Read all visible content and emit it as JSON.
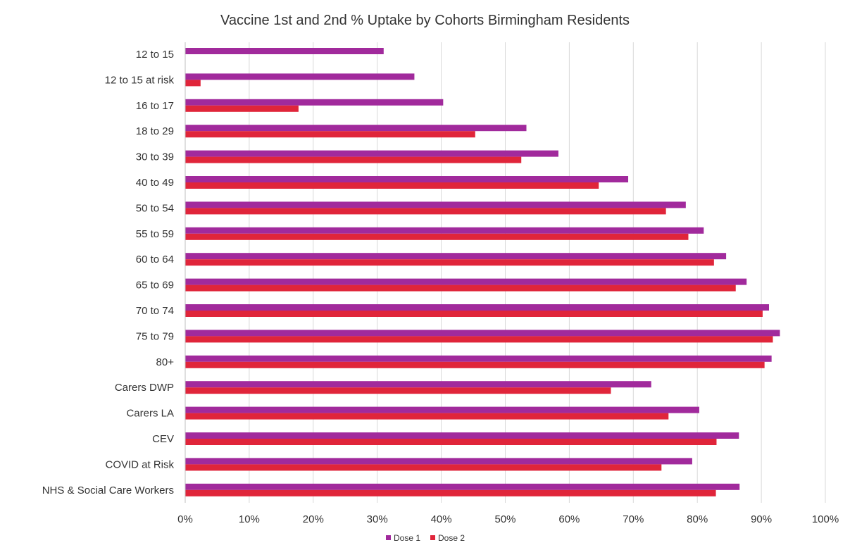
{
  "chart_data": {
    "type": "bar",
    "orientation": "horizontal",
    "title": "Vaccine 1st and 2nd % Uptake by Cohorts Birmingham Residents",
    "xlabel": "",
    "ylabel": "",
    "xlim": [
      0,
      100
    ],
    "x_ticks": [
      "0%",
      "10%",
      "20%",
      "30%",
      "40%",
      "50%",
      "60%",
      "70%",
      "80%",
      "90%",
      "100%"
    ],
    "grid": "vertical",
    "legend_position": "bottom",
    "categories": [
      "12 to 15",
      "12 to 15 at risk",
      "16 to 17",
      "18 to 29",
      "30 to 39",
      "40 to 49",
      "50 to 54",
      "55 to 59",
      "60 to 64",
      "65 to 69",
      "70 to 74",
      "75 to 79",
      "80+",
      "Carers DWP",
      "Carers LA",
      "CEV",
      "COVID at Risk",
      "NHS & Social Care Workers"
    ],
    "series": [
      {
        "name": "Dose 1",
        "color": "#a12a9c",
        "values": [
          31,
          35.8,
          40.3,
          53.3,
          58.3,
          69.2,
          78.2,
          81,
          84.5,
          87.7,
          91.2,
          92.9,
          91.6,
          72.8,
          80.3,
          86.5,
          79.2,
          86.6
        ]
      },
      {
        "name": "Dose 2",
        "color": "#e0253a",
        "values": [
          0,
          2.4,
          17.7,
          45.3,
          52.5,
          64.6,
          75.1,
          78.6,
          82.6,
          86,
          90.2,
          91.8,
          90.5,
          66.5,
          75.5,
          83,
          74.4,
          82.9
        ]
      }
    ]
  }
}
